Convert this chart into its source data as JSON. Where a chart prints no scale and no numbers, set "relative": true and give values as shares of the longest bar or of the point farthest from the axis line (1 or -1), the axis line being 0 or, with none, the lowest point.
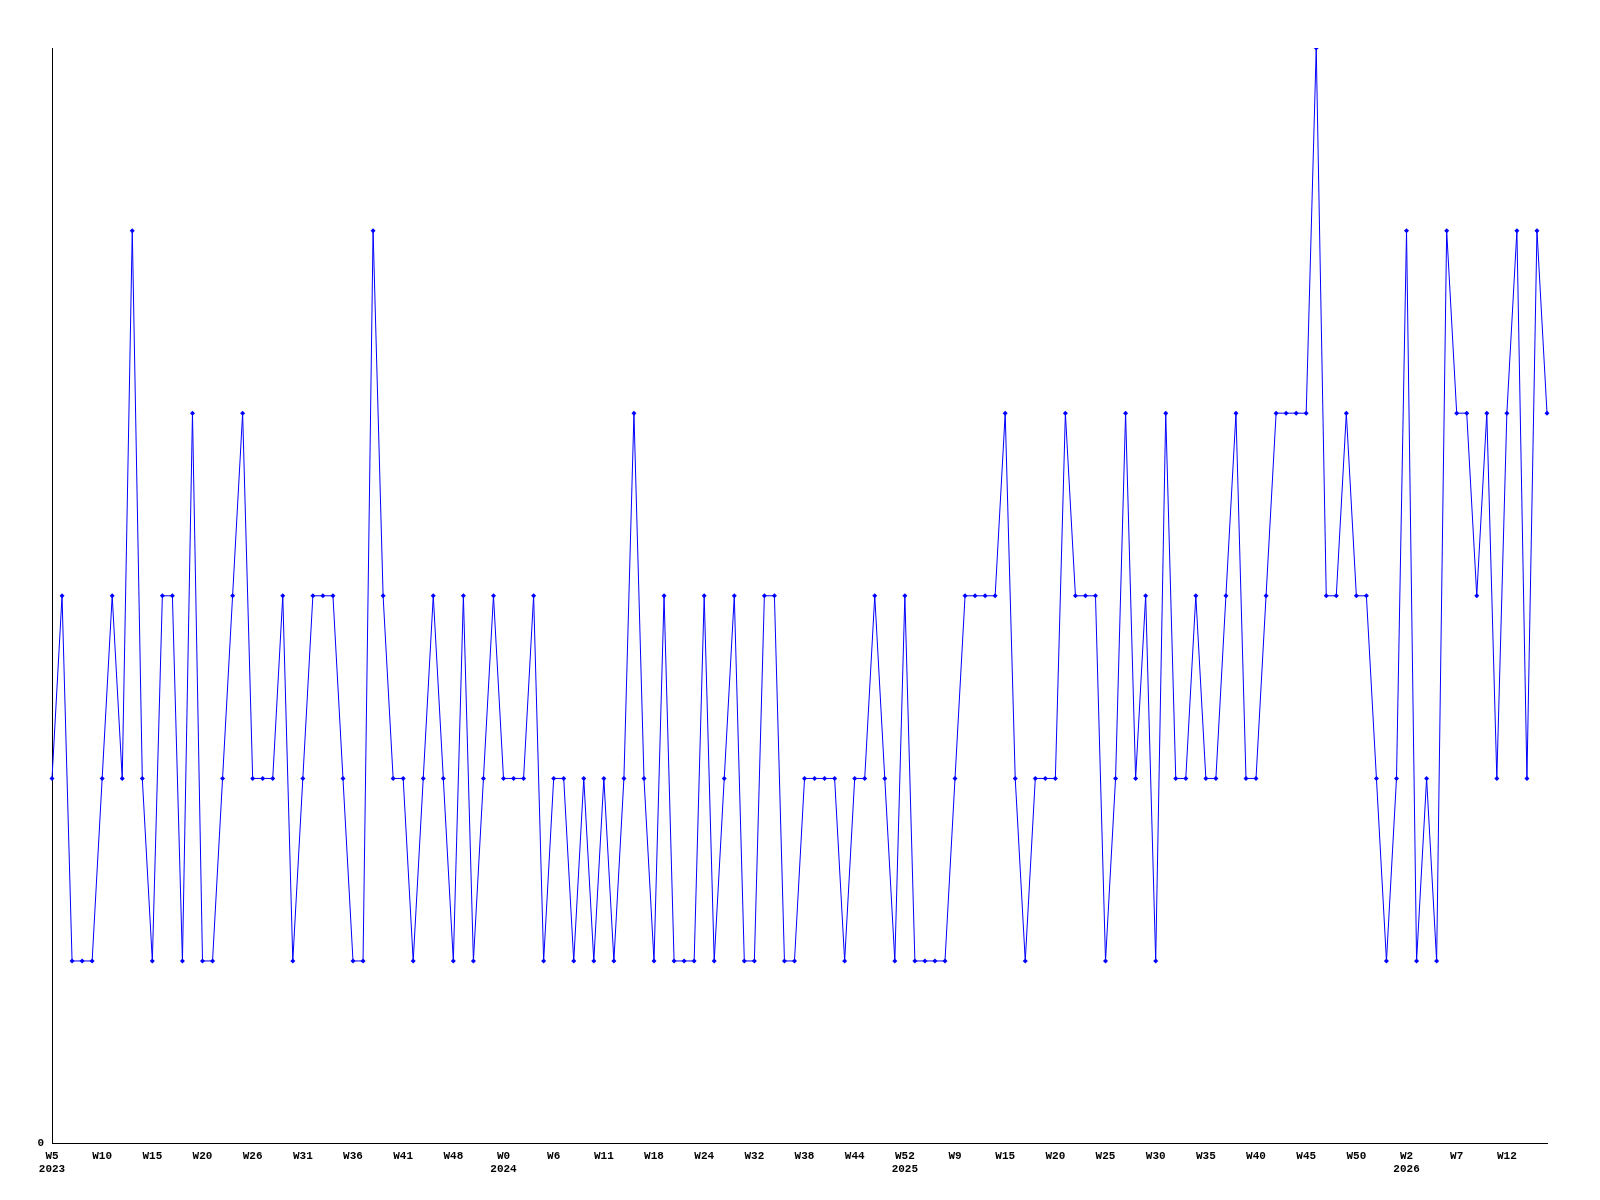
{
  "chart_data": {
    "type": "line",
    "relative": true,
    "color": "#0000ff",
    "marker": "diamond",
    "grid": false,
    "legend": false,
    "annotations": [
      "0"
    ],
    "categories": [
      "W5\n2023",
      null,
      null,
      null,
      null,
      "W10",
      null,
      null,
      null,
      null,
      "W15",
      null,
      null,
      null,
      null,
      "W20",
      null,
      null,
      null,
      null,
      "W26",
      null,
      null,
      null,
      null,
      "W31",
      null,
      null,
      null,
      null,
      "W36",
      null,
      null,
      null,
      null,
      "W41",
      null,
      null,
      null,
      null,
      "W48",
      null,
      null,
      null,
      null,
      "W0\n2024",
      null,
      null,
      null,
      null,
      "W6",
      null,
      null,
      null,
      null,
      "W11",
      null,
      null,
      null,
      null,
      "W18",
      null,
      null,
      null,
      null,
      "W24",
      null,
      null,
      null,
      null,
      "W32",
      null,
      null,
      null,
      null,
      "W38",
      null,
      null,
      null,
      null,
      "W44",
      null,
      null,
      null,
      null,
      "W52\n2025",
      null,
      null,
      null,
      null,
      "W9",
      null,
      null,
      null,
      null,
      "W15",
      null,
      null,
      null,
      null,
      "W20",
      null,
      null,
      null,
      null,
      "W25",
      null,
      null,
      null,
      null,
      "W30",
      null,
      null,
      null,
      null,
      "W35",
      null,
      null,
      null,
      null,
      "W40",
      null,
      null,
      null,
      null,
      "W45",
      null,
      null,
      null,
      null,
      "W50",
      null,
      null,
      null,
      null,
      "W2\n2026",
      null,
      null,
      null,
      null,
      "W7",
      null,
      null,
      null,
      null,
      "W12",
      null,
      null,
      null,
      null
    ],
    "values": [
      0.3333,
      0.5,
      0.1667,
      0.1667,
      0.1667,
      0.3333,
      0.5,
      0.3333,
      0.8333,
      0.3333,
      0.1667,
      0.5,
      0.5,
      0.1667,
      0.6667,
      0.1667,
      0.1667,
      0.3333,
      0.5,
      0.6667,
      0.3333,
      0.3333,
      0.3333,
      0.5,
      0.1667,
      0.3333,
      0.5,
      0.5,
      0.5,
      0.3333,
      0.1667,
      0.1667,
      0.8333,
      0.5,
      0.3333,
      0.3333,
      0.1667,
      0.3333,
      0.5,
      0.3333,
      0.1667,
      0.5,
      0.1667,
      0.3333,
      0.5,
      0.3333,
      0.3333,
      0.3333,
      0.5,
      0.1667,
      0.3333,
      0.3333,
      0.1667,
      0.3333,
      0.1667,
      0.3333,
      0.1667,
      0.3333,
      0.6667,
      0.3333,
      0.1667,
      0.5,
      0.1667,
      0.1667,
      0.1667,
      0.5,
      0.1667,
      0.3333,
      0.5,
      0.1667,
      0.1667,
      0.5,
      0.5,
      0.1667,
      0.1667,
      0.3333,
      0.3333,
      0.3333,
      0.3333,
      0.1667,
      0.3333,
      0.3333,
      0.5,
      0.3333,
      0.1667,
      0.5,
      0.1667,
      0.1667,
      0.1667,
      0.1667,
      0.3333,
      0.5,
      0.5,
      0.5,
      0.5,
      0.6667,
      0.3333,
      0.1667,
      0.3333,
      0.3333,
      0.3333,
      0.6667,
      0.5,
      0.5,
      0.5,
      0.1667,
      0.3333,
      0.6667,
      0.3333,
      0.5,
      0.1667,
      0.6667,
      0.3333,
      0.3333,
      0.5,
      0.3333,
      0.3333,
      0.5,
      0.6667,
      0.3333,
      0.3333,
      0.5,
      0.6667,
      0.6667,
      0.6667,
      0.6667,
      1,
      0.5,
      0.5,
      0.6667,
      0.5,
      0.5,
      0.3333,
      0.1667,
      0.3333,
      0.8333,
      0.1667,
      0.3333,
      0.1667,
      0.8333,
      0.6667,
      0.6667,
      0.5,
      0.6667,
      0.3333,
      0.6667,
      0.8333,
      0.3333,
      0.8333,
      0.6667
    ]
  }
}
